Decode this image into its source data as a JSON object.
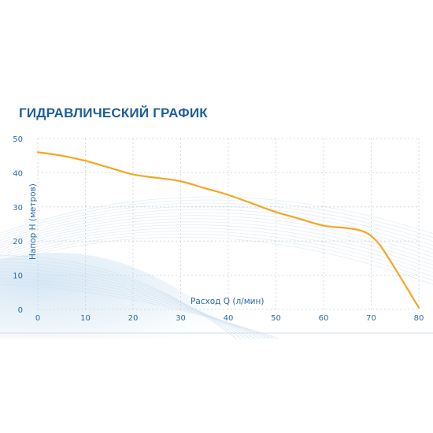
{
  "title": "ГИДРАВЛИЧЕСКИЙ ГРАФИК",
  "chart_data": {
    "type": "line",
    "xlabel": "Расход Q (л/мин)",
    "ylabel": "Напор H (метров)",
    "xlim": [
      0,
      80
    ],
    "ylim": [
      0,
      50
    ],
    "x_ticks": [
      "0",
      "10",
      "20",
      "30",
      "40",
      "50",
      "60",
      "70",
      "80"
    ],
    "y_ticks": [
      "0",
      "10",
      "20",
      "30",
      "40",
      "50"
    ],
    "grid": true,
    "series": [
      {
        "color": "#f5a623",
        "x": [
          0,
          5,
          10,
          15,
          20,
          25,
          30,
          35,
          40,
          45,
          50,
          55,
          60,
          65,
          68,
          70,
          72,
          75,
          80
        ],
        "y": [
          46,
          45,
          43.5,
          41.5,
          39.5,
          38.5,
          37.5,
          35.5,
          33.5,
          31,
          28.5,
          26.5,
          24.5,
          23.8,
          23,
          21.5,
          18.5,
          12,
          0.5
        ]
      }
    ]
  }
}
